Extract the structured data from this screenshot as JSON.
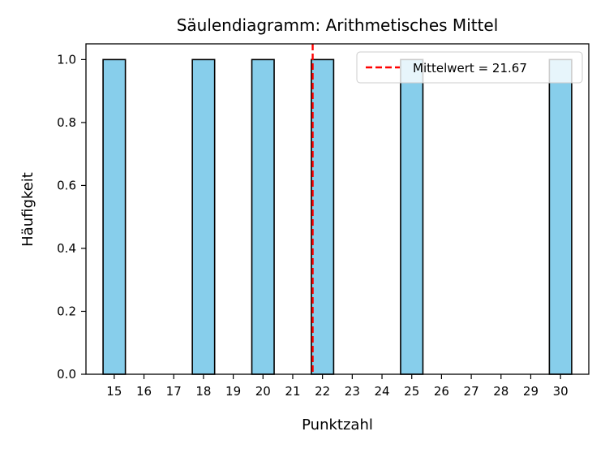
{
  "chart_data": {
    "type": "bar",
    "title": "Säulendiagramm: Arithmetisches Mittel",
    "xlabel": "Punktzahl",
    "ylabel": "Häufigkeit",
    "x_ticks": [
      15,
      16,
      17,
      18,
      19,
      20,
      21,
      22,
      23,
      24,
      25,
      26,
      27,
      28,
      29,
      30
    ],
    "y_ticks": [
      "0.0",
      "0.2",
      "0.4",
      "0.6",
      "0.8",
      "1.0"
    ],
    "xlim": [
      14.05,
      30.95
    ],
    "ylim": [
      0,
      1.05
    ],
    "bar_width": 0.75,
    "bars": [
      {
        "x": 15,
        "value": 1
      },
      {
        "x": 18,
        "value": 1
      },
      {
        "x": 20,
        "value": 1
      },
      {
        "x": 22,
        "value": 1
      },
      {
        "x": 25,
        "value": 1
      },
      {
        "x": 30,
        "value": 1
      }
    ],
    "mean_line": {
      "x": 21.67,
      "label": "Mittelwert = 21.67"
    },
    "legend_position": "top-right",
    "grid": false,
    "colors": {
      "bar_fill": "#87ceeb",
      "bar_edge": "#000000",
      "mean_line": "#ff0000"
    }
  }
}
